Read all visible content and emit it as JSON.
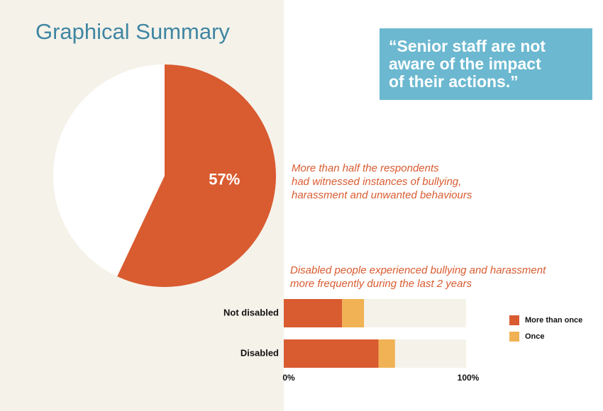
{
  "header": {
    "title": "Graphical Summary"
  },
  "quote": [
    "“Senior staff are not",
    "aware of the impact",
    "of their actions.”"
  ],
  "chart_data": [
    {
      "type": "pie",
      "values": [
        57,
        43
      ],
      "value_labels": [
        "57%",
        null
      ],
      "colors": [
        "#d95b30",
        "#ffffff"
      ],
      "annotation": [
        "More than half the respondents",
        "had witnessed instances of bullying,",
        "harassment and unwanted behaviours"
      ]
    },
    {
      "type": "stacked-barh",
      "title": [
        "Disabled people experienced bullying and harassment",
        "more frequently during the last 2 years"
      ],
      "categories": [
        "Not disabled",
        "Disabled"
      ],
      "series": [
        {
          "name": "More than once",
          "color": "#d95b30",
          "values": [
            32,
            52
          ]
        },
        {
          "name": "Once",
          "color": "#f0b254",
          "values": [
            12,
            9
          ]
        }
      ],
      "xlim": [
        0,
        100
      ],
      "xticks": [
        {
          "value": 0,
          "label": "0%"
        },
        {
          "value": 100,
          "label": "100%"
        }
      ],
      "legend": "right"
    }
  ]
}
